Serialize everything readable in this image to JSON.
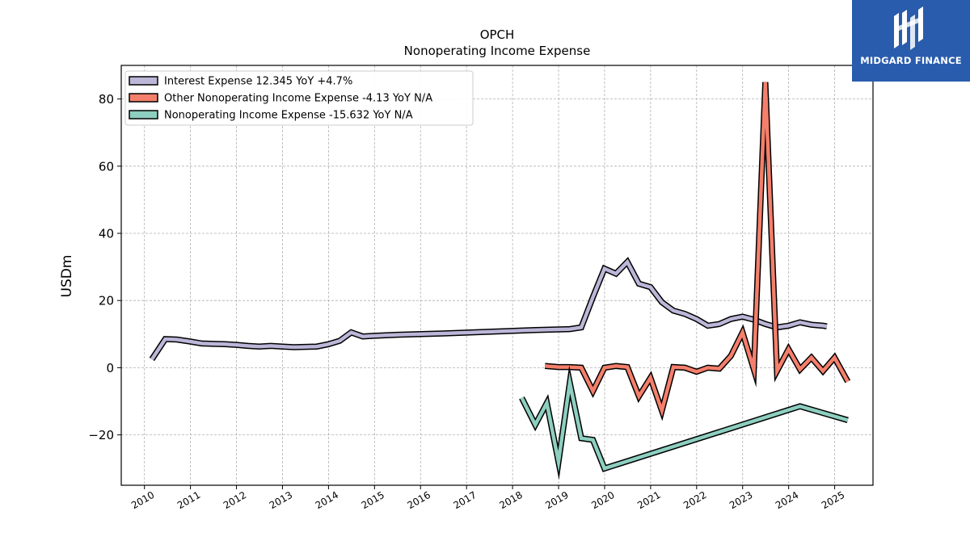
{
  "chart_data": {
    "type": "line",
    "title": "OPCH",
    "subtitle": "Nonoperating Income Expense",
    "ylabel": "USDm",
    "xlabel": "",
    "x_range": [
      "2009-07-01",
      "2025-11-01"
    ],
    "ylim": [
      -35,
      90
    ],
    "yticks": [
      -20,
      0,
      20,
      40,
      60,
      80
    ],
    "xticks": [
      "2010",
      "2011",
      "2012",
      "2013",
      "2014",
      "2015",
      "2016",
      "2017",
      "2018",
      "2019",
      "2020",
      "2021",
      "2022",
      "2023",
      "2024",
      "2025"
    ],
    "grid": true,
    "legend_position": "top-left",
    "series": [
      {
        "name": "Interest Expense",
        "legend": "Interest Expense  12.345 YoY +4.7%",
        "color": "#bcb6d8",
        "points": [
          [
            "2010-03-01",
            2.5
          ],
          [
            "2010-06-15",
            8.5
          ],
          [
            "2010-09-15",
            8.4
          ],
          [
            "2010-12-31",
            7.8
          ],
          [
            "2011-03-31",
            7.2
          ],
          [
            "2011-06-30",
            7.1
          ],
          [
            "2011-09-30",
            7.0
          ],
          [
            "2011-12-31",
            6.8
          ],
          [
            "2012-03-31",
            6.5
          ],
          [
            "2012-06-30",
            6.3
          ],
          [
            "2012-09-30",
            6.5
          ],
          [
            "2012-12-31",
            6.3
          ],
          [
            "2013-03-31",
            6.1
          ],
          [
            "2013-06-30",
            6.2
          ],
          [
            "2013-09-30",
            6.3
          ],
          [
            "2013-12-31",
            7.0
          ],
          [
            "2014-03-31",
            8.0
          ],
          [
            "2014-06-30",
            10.5
          ],
          [
            "2014-09-30",
            9.3
          ],
          [
            "2014-12-31",
            9.5
          ],
          [
            "2015-06-30",
            9.8
          ],
          [
            "2016-06-30",
            10.2
          ],
          [
            "2017-06-30",
            10.7
          ],
          [
            "2018-06-30",
            11.2
          ],
          [
            "2019-03-31",
            11.5
          ],
          [
            "2019-06-30",
            12.0
          ],
          [
            "2019-09-30",
            21.0
          ],
          [
            "2019-12-31",
            29.5
          ],
          [
            "2020-03-31",
            28.0
          ],
          [
            "2020-06-30",
            31.5
          ],
          [
            "2020-09-30",
            25.0
          ],
          [
            "2020-12-31",
            24.0
          ],
          [
            "2021-03-31",
            19.5
          ],
          [
            "2021-06-30",
            17.0
          ],
          [
            "2021-09-30",
            16.0
          ],
          [
            "2021-12-31",
            14.5
          ],
          [
            "2022-03-31",
            12.5
          ],
          [
            "2022-06-30",
            13.0
          ],
          [
            "2022-09-30",
            14.5
          ],
          [
            "2022-12-31",
            15.2
          ],
          [
            "2023-03-31",
            14.3
          ],
          [
            "2023-06-30",
            13.0
          ],
          [
            "2023-09-30",
            12.0
          ],
          [
            "2023-12-31",
            12.5
          ],
          [
            "2024-03-31",
            13.5
          ],
          [
            "2024-06-30",
            12.8
          ],
          [
            "2024-09-30",
            12.5
          ],
          [
            "2024-10-31",
            12.3
          ]
        ]
      },
      {
        "name": "Other Nonoperating Income Expense",
        "legend": "Other Nonoperating Income Expense  -4.13 YoY N/A",
        "color": "#f47f6b",
        "points": [
          [
            "2018-09-15",
            0.5
          ],
          [
            "2018-12-31",
            0.2
          ],
          [
            "2019-03-31",
            0.2
          ],
          [
            "2019-06-30",
            0.0
          ],
          [
            "2019-09-30",
            -7.0
          ],
          [
            "2019-12-31",
            0.0
          ],
          [
            "2020-03-31",
            0.5
          ],
          [
            "2020-06-30",
            0.2
          ],
          [
            "2020-09-30",
            -8.5
          ],
          [
            "2020-12-31",
            -3.0
          ],
          [
            "2021-03-31",
            -12.8
          ],
          [
            "2021-06-30",
            0.2
          ],
          [
            "2021-09-30",
            0.0
          ],
          [
            "2021-12-31",
            -1.2
          ],
          [
            "2022-03-31",
            0.0
          ],
          [
            "2022-06-30",
            -0.3
          ],
          [
            "2022-09-30",
            3.5
          ],
          [
            "2022-12-31",
            10.5
          ],
          [
            "2023-03-31",
            -0.5
          ],
          [
            "2023-06-30",
            85.0
          ],
          [
            "2023-09-30",
            -1.0
          ],
          [
            "2023-12-31",
            5.5
          ],
          [
            "2024-03-31",
            -0.5
          ],
          [
            "2024-06-30",
            3.0
          ],
          [
            "2024-09-30",
            -1.0
          ],
          [
            "2024-12-31",
            3.0
          ],
          [
            "2025-04-15",
            -4.13
          ]
        ]
      },
      {
        "name": "Nonoperating Income Expense",
        "legend": "Nonoperating Income Expense  -15.632 YoY N/A",
        "color": "#8dcfc0",
        "points": [
          [
            "2018-03-15",
            -9.0
          ],
          [
            "2018-06-30",
            -17.0
          ],
          [
            "2018-09-30",
            -10.5
          ],
          [
            "2018-12-31",
            -28.0
          ],
          [
            "2019-03-31",
            -4.5
          ],
          [
            "2019-06-30",
            -21.0
          ],
          [
            "2019-09-30",
            -21.5
          ],
          [
            "2019-12-31",
            -30.0
          ],
          [
            "2024-03-31",
            -11.5
          ],
          [
            "2025-04-15",
            -15.632
          ]
        ]
      }
    ]
  },
  "brand": {
    "name": "MIDGARD FINANCE",
    "bg_color": "#2a5cad"
  }
}
